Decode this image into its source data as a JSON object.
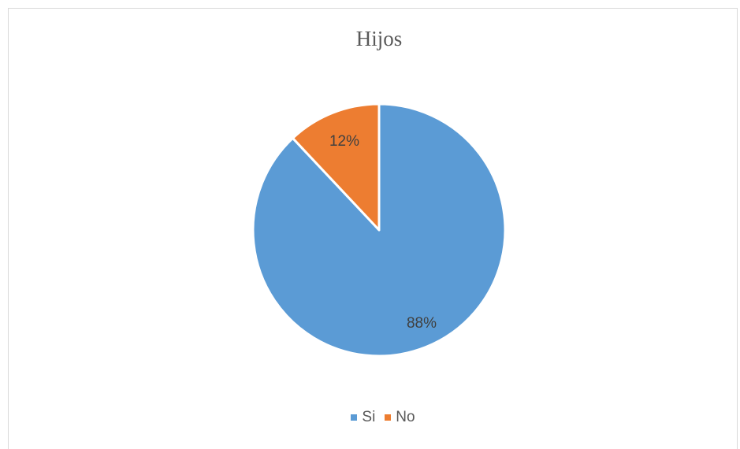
{
  "chart_data": {
    "type": "pie",
    "title": "Hijos",
    "categories": [
      "Si",
      "No"
    ],
    "values": [
      88,
      12
    ],
    "data_labels": [
      "88%",
      "12%"
    ],
    "colors": [
      "#5b9bd5",
      "#ed7d31"
    ],
    "legend_placement": "bottom",
    "start_angle_degrees": 0,
    "direction": "clockwise"
  }
}
